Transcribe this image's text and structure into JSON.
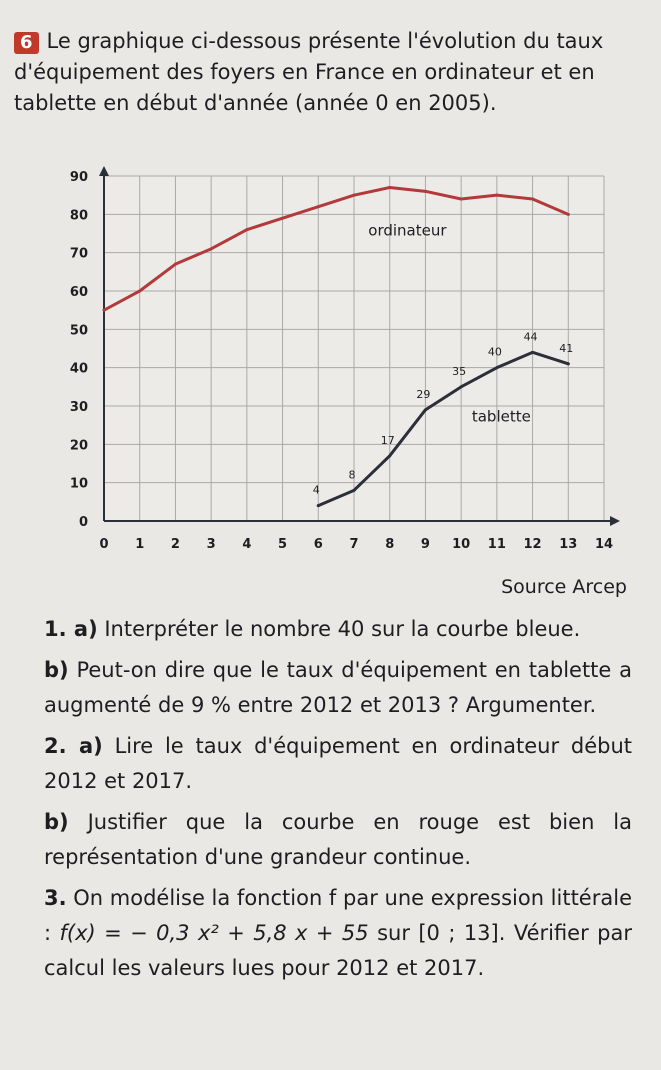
{
  "exercise": {
    "number": "6",
    "intro": "Le graphique ci-dessous présente l'évolution du taux d'équipement des foyers en France en ordinateur et en tablette en début d'année (année 0 en 2005)."
  },
  "source": "Source Arcep",
  "questions": {
    "q1a_num": "1. a)",
    "q1a_text": "Interpréter le nombre 40 sur la courbe bleue.",
    "q1b_num": "b)",
    "q1b_text": "Peut-on dire que le taux d'équipement en tablette a augmenté de 9 % entre 2012 et 2013 ? Argumenter.",
    "q2a_num": "2. a)",
    "q2a_text": "Lire le taux d'équipement en ordinateur début 2012 et 2017.",
    "q2b_num": "b)",
    "q2b_text": "Justifier que la courbe en rouge est bien la représentation d'une grandeur continue.",
    "q3_num": "3.",
    "q3_text_before": "On modélise la fonction f par une expression littérale :",
    "q3_formula": "f(x) = − 0,3 x² + 5,8 x + 55",
    "q3_text_after": "sur [0 ; 13]. Vérifier par calcul les valeurs lues pour 2012 et 2017."
  },
  "chart_data": {
    "type": "line",
    "title": "",
    "xlabel": "",
    "ylabel": "",
    "xlim": [
      0,
      14
    ],
    "ylim": [
      0,
      90
    ],
    "x_ticks": [
      0,
      1,
      2,
      3,
      4,
      5,
      6,
      7,
      8,
      9,
      10,
      11,
      12,
      13,
      14
    ],
    "y_ticks": [
      0,
      10,
      20,
      30,
      40,
      50,
      60,
      70,
      80,
      90
    ],
    "grid": true,
    "series": [
      {
        "name": "ordinateur",
        "color": "#b23a3a",
        "x": [
          0,
          1,
          2,
          3,
          4,
          5,
          6,
          7,
          8,
          9,
          10,
          11,
          12,
          13
        ],
        "values": [
          55,
          60,
          67,
          71,
          76,
          79,
          82,
          85,
          87,
          86,
          84,
          85,
          84,
          80
        ]
      },
      {
        "name": "tablette",
        "color": "#2b2f3a",
        "x": [
          6,
          7,
          8,
          9,
          10,
          11,
          12,
          13
        ],
        "values": [
          4,
          8,
          17,
          29,
          35,
          40,
          44,
          41
        ],
        "data_labels": [
          "4",
          "8",
          "17",
          "29",
          "35",
          "40",
          "44",
          "41"
        ]
      }
    ]
  }
}
